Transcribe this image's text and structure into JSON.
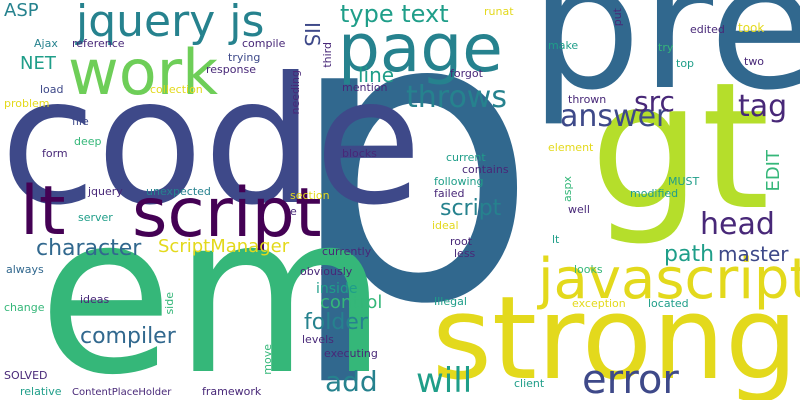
{
  "colors": {
    "background": "#ffffff",
    "purple": "#440154",
    "indigo": "#482878",
    "blue": "#3e4989",
    "slate": "#31688e",
    "teal": "#26828e",
    "cyan": "#1f9e89",
    "green": "#35b779",
    "lime": "#6ece58",
    "yellowgreen": "#b5de2b",
    "yellow": "#e3d91c"
  },
  "words": [
    {
      "text": "p",
      "color": "slate"
    },
    {
      "text": "code",
      "color": "blue"
    },
    {
      "text": "pre",
      "color": "slate"
    },
    {
      "text": "em",
      "color": "green"
    },
    {
      "text": "gt",
      "color": "yellowgreen"
    },
    {
      "text": "strong",
      "color": "yellow"
    },
    {
      "text": "lt",
      "color": "purple"
    },
    {
      "text": "script",
      "color": "purple"
    },
    {
      "text": "work",
      "color": "lime"
    },
    {
      "text": "page",
      "color": "teal"
    },
    {
      "text": "jquery js",
      "color": "teal"
    },
    {
      "text": "javascript",
      "color": "yellow"
    },
    {
      "text": "error",
      "color": "blue"
    },
    {
      "text": "will",
      "color": "cyan"
    },
    {
      "text": "head",
      "color": "indigo"
    },
    {
      "text": "tag",
      "color": "indigo"
    },
    {
      "text": "answer",
      "color": "blue"
    },
    {
      "text": "throws",
      "color": "teal"
    },
    {
      "text": "src",
      "color": "indigo"
    },
    {
      "text": "type text",
      "color": "cyan"
    },
    {
      "text": "add",
      "color": "teal"
    },
    {
      "text": "compiler",
      "color": "slate"
    },
    {
      "text": "folder",
      "color": "teal"
    },
    {
      "text": "character",
      "color": "slate"
    },
    {
      "text": "path",
      "color": "cyan"
    },
    {
      "text": "master",
      "color": "blue"
    },
    {
      "text": "script",
      "color": "teal"
    },
    {
      "text": "line",
      "color": "cyan"
    },
    {
      "text": "ScriptManager",
      "color": "yellow"
    },
    {
      "text": "control",
      "color": "green"
    },
    {
      "text": "IIS",
      "color": "blue"
    },
    {
      "text": "NET",
      "color": "cyan"
    },
    {
      "text": "ASP",
      "color": "teal"
    },
    {
      "text": "EDIT",
      "color": "green"
    },
    {
      "text": "inside",
      "color": "cyan"
    },
    {
      "text": "Ajax",
      "color": "teal"
    },
    {
      "text": "reference",
      "color": "indigo"
    },
    {
      "text": "compile",
      "color": "indigo"
    },
    {
      "text": "trying",
      "color": "blue"
    },
    {
      "text": "response",
      "color": "indigo"
    },
    {
      "text": "problem",
      "color": "yellow"
    },
    {
      "text": "load",
      "color": "blue"
    },
    {
      "text": "collection",
      "color": "yellow"
    },
    {
      "text": "file",
      "color": "blue"
    },
    {
      "text": "needing",
      "color": "indigo"
    },
    {
      "text": "third",
      "color": "indigo"
    },
    {
      "text": "runat",
      "color": "yellow"
    },
    {
      "text": "forgot",
      "color": "indigo"
    },
    {
      "text": "mention",
      "color": "indigo"
    },
    {
      "text": "put",
      "color": "indigo"
    },
    {
      "text": "make",
      "color": "cyan"
    },
    {
      "text": "edited",
      "color": "indigo"
    },
    {
      "text": "took",
      "color": "yellow"
    },
    {
      "text": "try",
      "color": "green"
    },
    {
      "text": "top",
      "color": "cyan"
    },
    {
      "text": "two",
      "color": "indigo"
    },
    {
      "text": "thrown",
      "color": "indigo"
    },
    {
      "text": "deep",
      "color": "green"
    },
    {
      "text": "form",
      "color": "indigo"
    },
    {
      "text": "jquery",
      "color": "indigo"
    },
    {
      "text": "unexpected",
      "color": "teal"
    },
    {
      "text": "server",
      "color": "cyan"
    },
    {
      "text": "section",
      "color": "yellow"
    },
    {
      "text": "e",
      "color": "indigo"
    },
    {
      "text": "always",
      "color": "slate"
    },
    {
      "text": "blocks",
      "color": "indigo"
    },
    {
      "text": "current",
      "color": "cyan"
    },
    {
      "text": "contains",
      "color": "indigo"
    },
    {
      "text": "following",
      "color": "cyan"
    },
    {
      "text": "failed",
      "color": "indigo"
    },
    {
      "text": "ideal",
      "color": "yellow"
    },
    {
      "text": "root",
      "color": "indigo"
    },
    {
      "text": "less",
      "color": "indigo"
    },
    {
      "text": "element",
      "color": "yellow"
    },
    {
      "text": "aspx",
      "color": "green"
    },
    {
      "text": "MUST",
      "color": "cyan"
    },
    {
      "text": "modified",
      "color": "cyan"
    },
    {
      "text": "well",
      "color": "indigo"
    },
    {
      "text": "lt",
      "color": "cyan"
    },
    {
      "text": "currently",
      "color": "indigo"
    },
    {
      "text": "obviously",
      "color": "indigo"
    },
    {
      "text": "looks",
      "color": "green"
    },
    {
      "text": "ideas",
      "color": "indigo"
    },
    {
      "text": "side",
      "color": "green"
    },
    {
      "text": "change",
      "color": "green"
    },
    {
      "text": "Illegal",
      "color": "cyan"
    },
    {
      "text": "exception",
      "color": "yellow"
    },
    {
      "text": "located",
      "color": "cyan"
    },
    {
      "text": "levels",
      "color": "indigo"
    },
    {
      "text": "move",
      "color": "green"
    },
    {
      "text": "executing",
      "color": "indigo"
    },
    {
      "text": "SOLVED",
      "color": "indigo"
    },
    {
      "text": "relative",
      "color": "cyan"
    },
    {
      "text": "ContentPlaceHolder",
      "color": "indigo"
    },
    {
      "text": "framework",
      "color": "indigo"
    },
    {
      "text": "client",
      "color": "cyan"
    }
  ]
}
